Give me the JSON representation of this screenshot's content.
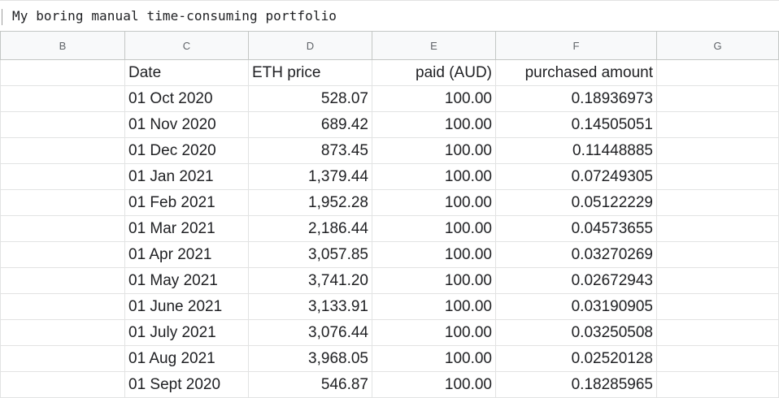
{
  "formula_bar": {
    "value": "My boring manual time-consuming portfolio"
  },
  "columns": [
    "B",
    "C",
    "D",
    "E",
    "F",
    "G"
  ],
  "header_row": {
    "date": "Date",
    "eth_price": "ETH price",
    "paid": "paid (AUD)",
    "purchased": "purchased amount"
  },
  "rows": [
    {
      "date": "01 Oct 2020",
      "eth_price": "528.07",
      "paid": "100.00",
      "purchased": "0.18936973"
    },
    {
      "date": "01 Nov 2020",
      "eth_price": "689.42",
      "paid": "100.00",
      "purchased": "0.14505051"
    },
    {
      "date": "01 Dec 2020",
      "eth_price": "873.45",
      "paid": "100.00",
      "purchased": "0.11448885"
    },
    {
      "date": "01 Jan 2021",
      "eth_price": "1,379.44",
      "paid": "100.00",
      "purchased": "0.07249305"
    },
    {
      "date": "01 Feb 2021",
      "eth_price": "1,952.28",
      "paid": "100.00",
      "purchased": "0.05122229"
    },
    {
      "date": "01 Mar 2021",
      "eth_price": "2,186.44",
      "paid": "100.00",
      "purchased": "0.04573655"
    },
    {
      "date": "01 Apr 2021",
      "eth_price": "3,057.85",
      "paid": "100.00",
      "purchased": "0.03270269"
    },
    {
      "date": "01 May 2021",
      "eth_price": "3,741.20",
      "paid": "100.00",
      "purchased": "0.02672943"
    },
    {
      "date": "01 June 2021",
      "eth_price": "3,133.91",
      "paid": "100.00",
      "purchased": "0.03190905"
    },
    {
      "date": "01 July 2021",
      "eth_price": "3,076.44",
      "paid": "100.00",
      "purchased": "0.03250508"
    },
    {
      "date": "01 Aug 2021",
      "eth_price": "3,968.05",
      "paid": "100.00",
      "purchased": "0.02520128"
    },
    {
      "date": "01 Sept 2020",
      "eth_price": "546.87",
      "paid": "100.00",
      "purchased": "0.18285965"
    }
  ]
}
